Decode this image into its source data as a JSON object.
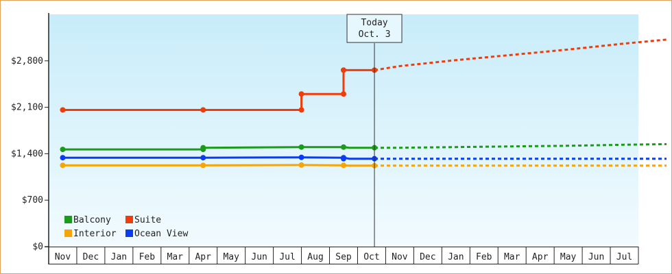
{
  "chart_data": {
    "type": "line",
    "today_label_line1": "Today",
    "today_label_line2": "Oct. 3",
    "today_x": 11.1,
    "x_tick_labels": [
      "Nov",
      "Dec",
      "Jan",
      "Feb",
      "Mar",
      "Apr",
      "May",
      "Jun",
      "Jul",
      "Aug",
      "Sep",
      "Oct",
      "Nov",
      "Dec",
      "Jan",
      "Feb",
      "Mar",
      "Apr",
      "May",
      "Jun",
      "Jul"
    ],
    "ylim": [
      0,
      3500
    ],
    "y_ticks": [
      {
        "value": 0,
        "label": "$0"
      },
      {
        "value": 700,
        "label": "$700"
      },
      {
        "value": 1400,
        "label": "$1,400"
      },
      {
        "value": 2100,
        "label": "$2,100"
      },
      {
        "value": 2800,
        "label": "$2,800"
      }
    ],
    "grid": false,
    "legend_position": "bottom-left",
    "series": [
      {
        "name": "Balcony",
        "color": "#1a9c1a",
        "historical": [
          [
            0,
            1465
          ],
          [
            5,
            1465
          ],
          [
            5,
            1490
          ],
          [
            8.5,
            1500
          ],
          [
            10,
            1500
          ],
          [
            10.2,
            1490
          ],
          [
            11.1,
            1490
          ]
        ],
        "markers": [
          [
            0,
            1465
          ],
          [
            5,
            1465
          ],
          [
            5,
            1490
          ],
          [
            8.5,
            1500
          ],
          [
            10,
            1500
          ],
          [
            11.1,
            1490
          ]
        ],
        "forecast": [
          [
            11.1,
            1490
          ],
          [
            12,
            1490
          ],
          [
            14,
            1500
          ],
          [
            16,
            1510
          ],
          [
            18,
            1520
          ],
          [
            20,
            1535
          ],
          [
            21.5,
            1545
          ]
        ]
      },
      {
        "name": "Suite",
        "color": "#f03c0a",
        "historical": [
          [
            0,
            2060
          ],
          [
            5,
            2060
          ],
          [
            8.5,
            2060
          ],
          [
            8.5,
            2300
          ],
          [
            10,
            2300
          ],
          [
            10,
            2660
          ],
          [
            11.1,
            2660
          ]
        ],
        "markers": [
          [
            0,
            2060
          ],
          [
            5,
            2060
          ],
          [
            8.5,
            2060
          ],
          [
            8.5,
            2300
          ],
          [
            10,
            2300
          ],
          [
            10,
            2660
          ],
          [
            11.1,
            2660
          ]
        ],
        "forecast": [
          [
            11.1,
            2660
          ],
          [
            12,
            2720
          ],
          [
            14,
            2810
          ],
          [
            16,
            2890
          ],
          [
            18,
            2970
          ],
          [
            20,
            3060
          ],
          [
            21.5,
            3120
          ]
        ]
      },
      {
        "name": "Interior",
        "color": "#f5a50a",
        "historical": [
          [
            0,
            1225
          ],
          [
            5,
            1225
          ],
          [
            8.5,
            1230
          ],
          [
            10,
            1225
          ],
          [
            10.2,
            1220
          ],
          [
            11.1,
            1220
          ]
        ],
        "markers": [
          [
            0,
            1225
          ],
          [
            5,
            1225
          ],
          [
            8.5,
            1230
          ],
          [
            10,
            1225
          ],
          [
            11.1,
            1220
          ]
        ],
        "forecast": [
          [
            11.1,
            1220
          ],
          [
            21.5,
            1220
          ]
        ]
      },
      {
        "name": "Ocean View",
        "color": "#0a3cf0",
        "historical": [
          [
            0,
            1340
          ],
          [
            5,
            1340
          ],
          [
            8.5,
            1345
          ],
          [
            10,
            1340
          ],
          [
            10.2,
            1325
          ],
          [
            11.1,
            1325
          ]
        ],
        "markers": [
          [
            0,
            1340
          ],
          [
            5,
            1340
          ],
          [
            8.5,
            1345
          ],
          [
            10,
            1340
          ],
          [
            10,
            1325
          ],
          [
            11.1,
            1325
          ]
        ],
        "forecast": [
          [
            11.1,
            1325
          ],
          [
            21.5,
            1325
          ]
        ]
      }
    ],
    "legend": [
      {
        "name": "Balcony",
        "color": "#1a9c1a"
      },
      {
        "name": "Suite",
        "color": "#f03c0a"
      },
      {
        "name": "Interior",
        "color": "#f5a50a"
      },
      {
        "name": "Ocean View",
        "color": "#0a3cf0"
      }
    ]
  }
}
